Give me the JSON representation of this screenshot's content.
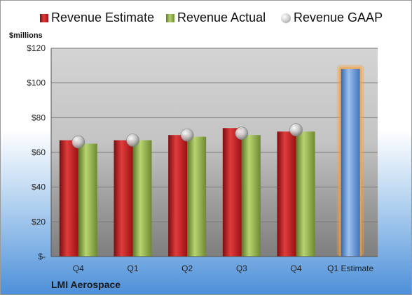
{
  "company": "LMI Aerospace",
  "chart_data": {
    "type": "bar",
    "ylabel": "$millions",
    "ylim": [
      0,
      120
    ],
    "yticks": [
      0,
      20,
      40,
      60,
      80,
      100,
      120
    ],
    "ytick_labels": [
      "$-",
      "$20",
      "$40",
      "$60",
      "$80",
      "$100",
      "$120"
    ],
    "categories": [
      "Q4",
      "Q1",
      "Q2",
      "Q3",
      "Q4",
      "Q1 Estimate"
    ],
    "legend_position": "top",
    "grid": true,
    "series": [
      {
        "name": "Revenue Estimate",
        "color": "#c0181b",
        "values": [
          67,
          67,
          70,
          74,
          72,
          null
        ]
      },
      {
        "name": "Revenue Actual",
        "color": "#8fb04a",
        "values": [
          65,
          67,
          69,
          70,
          72,
          null
        ]
      },
      {
        "name": "Revenue GAAP",
        "color": "#bfbfbf",
        "values": [
          66,
          67,
          70,
          71,
          73,
          null
        ]
      }
    ],
    "forecast": {
      "category": "Q1 Estimate",
      "value": 108,
      "color": "#5b8fd6",
      "highlight": "#f6a23a"
    }
  }
}
